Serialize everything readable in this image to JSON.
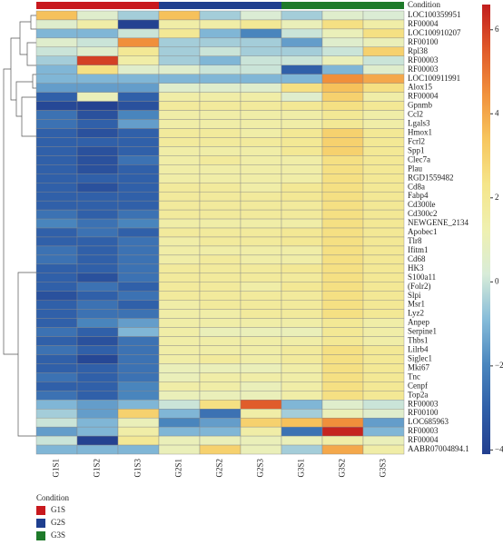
{
  "chart_data": {
    "type": "heatmap",
    "condition_label": "Condition",
    "conditions": [
      {
        "name": "G1S",
        "color": "#c8191e"
      },
      {
        "name": "G2S",
        "color": "#1f3f8f"
      },
      {
        "name": "G3S",
        "color": "#1e7a2a"
      }
    ],
    "columns": [
      "G1S1",
      "G1S2",
      "G1S3",
      "G2S1",
      "G2S2",
      "G2S3",
      "G3S1",
      "G3S2",
      "G3S3"
    ],
    "rows": [
      "LOC100359951",
      "RF00004",
      "LOC100910207",
      "RF00100",
      "Rpl38",
      "RF00003",
      "RF00003",
      "LOC100911991",
      "Alox15",
      "RF00004",
      "Gpnmb",
      "Ccl2",
      "Lgals3",
      "Hmox1",
      "Fcrl2",
      "Spp1",
      "Clec7a",
      "Plau",
      "RGD1559482",
      "Cd8a",
      "Fabp4",
      "Cd300le",
      "Cd300c2",
      "NEWGENE_2134",
      "Apobec1",
      "Tlr8",
      "Ifitm1",
      "Cd68",
      "HK3",
      "S100a11",
      "(Folr2)",
      "Slpi",
      "Msr1",
      "Lyz2",
      "Anpep",
      "Serpine1",
      "Thbs1",
      "Lilrb4",
      "Siglec1",
      "Mki67",
      "Tnc",
      "Cenpf",
      "Top2a",
      "RF00003",
      "RF00100",
      "LOC685963",
      "RF00003",
      "RF00004",
      "AABR07004894.1"
    ],
    "values": [
      [
        3.5,
        0.5,
        -0.5,
        3.5,
        -0.5,
        0.3,
        -0.5,
        0.5,
        0.3
      ],
      [
        0.5,
        1.5,
        -4,
        1.5,
        1.5,
        2,
        1,
        2.5,
        1.5
      ],
      [
        -1,
        -1,
        0,
        2,
        -1,
        -2,
        0,
        1,
        2.5
      ],
      [
        0.5,
        0,
        4.5,
        -0.5,
        -0.5,
        -0.5,
        -1.5,
        0.5,
        1
      ],
      [
        0,
        0.5,
        2,
        -0.5,
        0,
        -0.5,
        -0.5,
        0,
        3
      ],
      [
        -0.5,
        6,
        1.5,
        -0.5,
        -1,
        0,
        0,
        1,
        0
      ],
      [
        -1,
        2.5,
        0.5,
        0.5,
        0,
        0,
        -3,
        -1,
        0.5
      ],
      [
        -1,
        -1,
        -1,
        -1,
        -1,
        -1,
        -1,
        4.5,
        4
      ],
      [
        -1.5,
        -1.5,
        -1.5,
        0.5,
        0.5,
        0.5,
        2.5,
        3.5,
        2.5
      ],
      [
        -3,
        1,
        -3,
        1.5,
        1.5,
        1.5,
        0.5,
        3,
        1.5
      ],
      [
        -3.8,
        -4,
        -3.5,
        1.8,
        1.8,
        1.8,
        2,
        2.5,
        2
      ],
      [
        -2.5,
        -3.5,
        -2,
        1.5,
        1.5,
        1.5,
        1.5,
        2,
        1.5
      ],
      [
        -2.5,
        -3,
        -1.5,
        1.5,
        1.5,
        1.5,
        1.5,
        2,
        1.5
      ],
      [
        -3,
        -3.5,
        -3,
        1.8,
        1.8,
        1.5,
        2,
        3,
        2
      ],
      [
        -3,
        -3,
        -3,
        1.8,
        1.8,
        1.8,
        2,
        3,
        2
      ],
      [
        -3,
        -3.5,
        -3,
        1.5,
        1.5,
        1.5,
        2,
        3,
        2
      ],
      [
        -3,
        -3.5,
        -2.5,
        1.5,
        1.8,
        1.5,
        1.5,
        2.5,
        2
      ],
      [
        -3,
        -3.5,
        -3,
        1.5,
        1.5,
        1.5,
        1.5,
        2.5,
        2
      ],
      [
        -3,
        -3,
        -3,
        1.5,
        1.5,
        1.5,
        1.5,
        2.5,
        2
      ],
      [
        -3,
        -3.5,
        -3,
        1.8,
        1.8,
        1.5,
        2,
        2.5,
        2
      ],
      [
        -3,
        -3,
        -3,
        1.8,
        1.8,
        1.8,
        2,
        2.5,
        2
      ],
      [
        -3,
        -3,
        -3,
        1.8,
        1.8,
        1.8,
        1.8,
        2.5,
        2
      ],
      [
        -2.5,
        -3,
        -2.5,
        1.8,
        1.8,
        1.8,
        1.8,
        2.5,
        2
      ],
      [
        -2,
        -2.5,
        -2,
        1.5,
        1.5,
        1.5,
        1.5,
        2.5,
        2
      ],
      [
        -3,
        -2.5,
        -3,
        1.8,
        1.8,
        1.8,
        2,
        2.5,
        2
      ],
      [
        -3,
        -3,
        -2.5,
        1.5,
        1.8,
        1.8,
        2,
        2.5,
        2
      ],
      [
        -2.5,
        -3,
        -2.5,
        1.5,
        1.5,
        1.5,
        1.5,
        2.5,
        2
      ],
      [
        -2.5,
        -3,
        -2.5,
        1.5,
        1.8,
        1.5,
        1.5,
        2.5,
        2
      ],
      [
        -3,
        -3,
        -2.5,
        1.8,
        1.8,
        1.8,
        2,
        2.5,
        2
      ],
      [
        -3,
        -3.5,
        -2.5,
        1.8,
        1.8,
        1.8,
        1.8,
        2.5,
        2
      ],
      [
        -3,
        -2.5,
        -3,
        1.8,
        1.8,
        1.5,
        2,
        2.5,
        2
      ],
      [
        -3.5,
        -3,
        -2.5,
        1.8,
        1.8,
        1.8,
        1.8,
        2.5,
        2
      ],
      [
        -3,
        -2.5,
        -3,
        1.5,
        1.8,
        1.8,
        1.8,
        2.5,
        2
      ],
      [
        -3,
        -2.5,
        -2.5,
        1.5,
        1.5,
        1.8,
        1.8,
        2.5,
        2
      ],
      [
        -3,
        -2,
        -1.5,
        1.5,
        1.5,
        1.5,
        1.5,
        2,
        1.5
      ],
      [
        -2.5,
        -3,
        -1,
        1.5,
        1,
        1,
        1,
        2,
        1.5
      ],
      [
        -3,
        -3.5,
        -2.5,
        1.5,
        1.5,
        1.5,
        1.5,
        2,
        1.5
      ],
      [
        -2.5,
        -3,
        -2.5,
        1.5,
        1.5,
        1.5,
        1.8,
        2.5,
        2
      ],
      [
        -3,
        -3.8,
        -2.5,
        1.5,
        1.8,
        1.5,
        1.8,
        2.5,
        2
      ],
      [
        -3,
        -3,
        -2.5,
        1,
        1,
        1,
        1.5,
        2.5,
        2
      ],
      [
        -2.5,
        -3,
        -2.5,
        1,
        1.5,
        1.5,
        1.5,
        2.5,
        2
      ],
      [
        -3,
        -3,
        -2,
        1.5,
        1.5,
        1,
        1.5,
        2.5,
        2
      ],
      [
        -2.5,
        -3,
        -2,
        1,
        1,
        1,
        1.5,
        2.5,
        2
      ],
      [
        -1,
        -1.5,
        -1,
        0,
        2.5,
        5.5,
        -1,
        0.5,
        0
      ],
      [
        -0.5,
        -1.5,
        3,
        -1,
        -2.5,
        1.5,
        -0.5,
        1,
        0.5
      ],
      [
        0,
        -1,
        1,
        -2,
        -1.5,
        3,
        3.5,
        4.5,
        -1.5
      ],
      [
        -1.5,
        -1,
        1.5,
        -1,
        -1,
        1.5,
        -2.5,
        6.5,
        -1
      ],
      [
        0,
        -4,
        2,
        1,
        1,
        1,
        1,
        1.5,
        1
      ],
      [
        -1,
        -1,
        -1,
        1,
        3,
        1,
        -0.5,
        4,
        1.5
      ]
    ],
    "zlim": [
      -4.1,
      6.6
    ],
    "zticks": [
      {
        "value": -4,
        "label": "−4"
      },
      {
        "value": -2,
        "label": "−2"
      },
      0,
      2,
      4,
      6
    ],
    "colors": [
      "#233f8f",
      "#2f5fa8",
      "#4a86be",
      "#86bcd9",
      "#d8ecd8",
      "#eff0b0",
      "#f5e58a",
      "#f7c65e",
      "#f1913c",
      "#e05a2a",
      "#c21e1e"
    ]
  }
}
